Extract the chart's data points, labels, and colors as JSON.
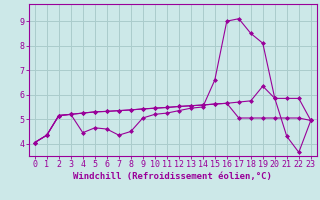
{
  "background_color": "#cce8e8",
  "grid_color": "#aacccc",
  "line_color": "#990099",
  "xlabel": "Windchill (Refroidissement éolien,°C)",
  "xlim": [
    -0.5,
    23.5
  ],
  "ylim": [
    3.5,
    9.7
  ],
  "yticks": [
    4,
    5,
    6,
    7,
    8,
    9
  ],
  "xticks": [
    0,
    1,
    2,
    3,
    4,
    5,
    6,
    7,
    8,
    9,
    10,
    11,
    12,
    13,
    14,
    15,
    16,
    17,
    18,
    19,
    20,
    21,
    22,
    23
  ],
  "line1_x": [
    0,
    1,
    2,
    3,
    4,
    5,
    6,
    7,
    8,
    9,
    10,
    11,
    12,
    13,
    14,
    15,
    16,
    17,
    18,
    19,
    20,
    21,
    22,
    23
  ],
  "line1_y": [
    4.05,
    4.35,
    5.15,
    5.2,
    4.45,
    4.65,
    4.6,
    4.35,
    4.5,
    5.05,
    5.2,
    5.25,
    5.35,
    5.45,
    5.5,
    6.6,
    9.0,
    9.1,
    8.5,
    8.1,
    5.85,
    4.3,
    3.65,
    4.95
  ],
  "line2_x": [
    0,
    1,
    2,
    3,
    4,
    5,
    6,
    7,
    8,
    9,
    10,
    11,
    12,
    13,
    14,
    15,
    16,
    17,
    18,
    19,
    20,
    21,
    22,
    23
  ],
  "line2_y": [
    4.05,
    4.35,
    5.15,
    5.2,
    5.25,
    5.3,
    5.32,
    5.35,
    5.38,
    5.42,
    5.45,
    5.48,
    5.52,
    5.55,
    5.58,
    5.62,
    5.65,
    5.7,
    5.75,
    6.35,
    5.85,
    5.85,
    5.85,
    4.95
  ],
  "line3_x": [
    0,
    1,
    2,
    3,
    4,
    5,
    6,
    7,
    8,
    9,
    10,
    11,
    12,
    13,
    14,
    15,
    16,
    17,
    18,
    19,
    20,
    21,
    22,
    23
  ],
  "line3_y": [
    4.05,
    4.35,
    5.15,
    5.2,
    5.25,
    5.3,
    5.32,
    5.35,
    5.38,
    5.42,
    5.45,
    5.48,
    5.52,
    5.55,
    5.58,
    5.62,
    5.65,
    5.05,
    5.05,
    5.05,
    5.05,
    5.05,
    5.05,
    4.95
  ],
  "xlabel_fontsize": 6.5,
  "tick_fontsize": 6,
  "marker": "D",
  "markersize": 2.0,
  "linewidth": 0.8
}
